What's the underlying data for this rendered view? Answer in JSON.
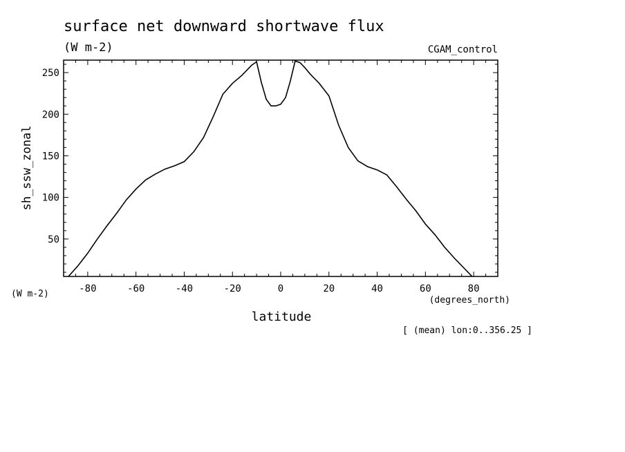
{
  "chart_data": {
    "type": "line",
    "title": "surface net downward shortwave flux",
    "title_units": "(W m-2)",
    "dataset_label": "CGAM_control",
    "ylabel": "sh_ssw_zonal",
    "y_units": "(W m-2)",
    "xlabel": "latitude",
    "x_units": "(degrees_north)",
    "footnote": "[ (mean) lon:0..356.25 ]",
    "xlim": [
      -90,
      90
    ],
    "ylim": [
      5,
      265
    ],
    "x_ticks": [
      -80,
      -60,
      -40,
      -20,
      0,
      20,
      40,
      60,
      80
    ],
    "y_ticks": [
      50,
      100,
      150,
      200,
      250
    ],
    "grid": false,
    "series": [
      {
        "x": [
          -88,
          -84,
          -80,
          -76,
          -72,
          -68,
          -64,
          -60,
          -56,
          -52,
          -48,
          -44,
          -40,
          -36,
          -32,
          -28,
          -24,
          -20,
          -16,
          -12,
          -10,
          -8,
          -6,
          -4,
          -2,
          0,
          2,
          4,
          6,
          8,
          10,
          12,
          14,
          16,
          20,
          24,
          28,
          32,
          36,
          40,
          44,
          48,
          52,
          56,
          60,
          64,
          68,
          72,
          76,
          80,
          84,
          88
        ],
        "y": [
          5,
          18,
          33,
          50,
          66,
          81,
          97,
          110,
          121,
          128,
          134,
          138,
          143,
          155,
          172,
          197,
          224,
          237,
          247,
          259,
          263,
          238,
          218,
          210,
          210,
          212,
          220,
          240,
          264,
          262,
          256,
          249,
          243,
          237,
          222,
          187,
          160,
          144,
          137,
          133,
          127,
          113,
          98,
          84,
          68,
          55,
          40,
          27,
          15,
          3,
          0,
          0
        ]
      }
    ]
  }
}
